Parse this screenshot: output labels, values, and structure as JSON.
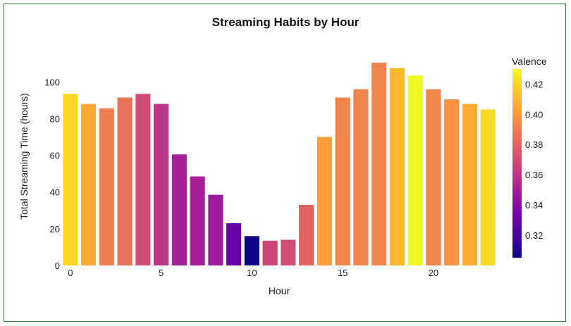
{
  "chart_data": {
    "type": "bar",
    "title": "Streaming Habits by Hour",
    "xlabel": "Hour",
    "ylabel": "Total Streaming Time (hours)",
    "x_ticks": [
      "0",
      "5",
      "10",
      "15",
      "20"
    ],
    "y_ticks": [
      "0",
      "20",
      "40",
      "60",
      "80",
      "100"
    ],
    "xlim": [
      -0.5,
      23.5
    ],
    "ylim": [
      0,
      117
    ],
    "grid": false,
    "colorbar": {
      "title": "Valence",
      "ticks": [
        "0.32",
        "0.34",
        "0.36",
        "0.38",
        "0.40",
        "0.42"
      ],
      "range": [
        0.305,
        0.43
      ]
    },
    "categories": [
      0,
      1,
      2,
      3,
      4,
      5,
      6,
      7,
      8,
      9,
      10,
      11,
      12,
      13,
      14,
      15,
      16,
      17,
      18,
      19,
      20,
      21,
      22,
      23
    ],
    "values": [
      93.5,
      88,
      85.5,
      91.5,
      93.5,
      88,
      60.5,
      48.5,
      38.5,
      23,
      16,
      13.5,
      14,
      33,
      70,
      91.5,
      96,
      110.5,
      107.5,
      103.5,
      96,
      90.5,
      88,
      85
    ],
    "valence": [
      0.42,
      0.405,
      0.39,
      0.385,
      0.37,
      0.36,
      0.35,
      0.35,
      0.348,
      0.33,
      0.305,
      0.368,
      0.37,
      0.38,
      0.402,
      0.392,
      0.392,
      0.392,
      0.41,
      0.43,
      0.392,
      0.398,
      0.406,
      0.421
    ]
  }
}
